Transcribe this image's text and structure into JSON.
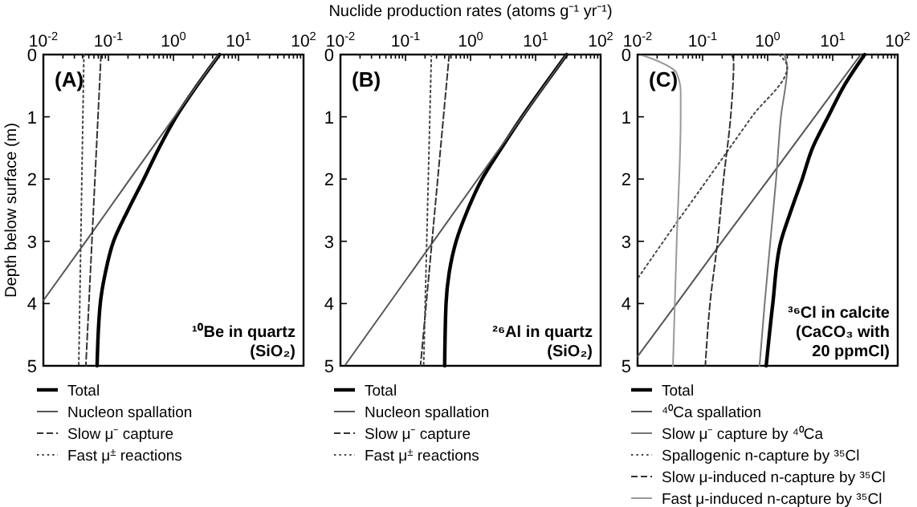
{
  "chart_data": [
    {
      "type": "line",
      "xlim": [
        0.01,
        100
      ],
      "ylim": [
        5,
        0
      ],
      "log": "x",
      "ylabel": "Depth below surface (m)",
      "legend": "bottom",
      "xticks": [
        {
          "value": 0.01,
          "label": "10$^{-2}$"
        },
        {
          "value": 0.1,
          "label": "10$^{-1}$"
        },
        {
          "value": 1,
          "label": "10$^{0}$"
        },
        {
          "value": 10,
          "label": "10$^{1}$"
        },
        {
          "value": 100,
          "label": "10$^{2}$"
        },
        {
          "value": 0.02,
          "label": null
        },
        {
          "value": 0.03,
          "label": null
        },
        {
          "value": 0.04,
          "label": null
        },
        {
          "value": 0.05,
          "label": null
        },
        {
          "value": 0.06,
          "label": null
        },
        {
          "value": 0.07,
          "label": null
        },
        {
          "value": 0.08,
          "label": null
        },
        {
          "value": 0.09,
          "label": null
        },
        {
          "value": 0.2,
          "label": null
        },
        {
          "value": 0.3,
          "label": null
        },
        {
          "value": 0.4,
          "label": null
        },
        {
          "value": 0.5,
          "label": null
        },
        {
          "value": 0.6,
          "label": null
        },
        {
          "value": 0.7,
          "label": null
        },
        {
          "value": 0.8,
          "label": null
        },
        {
          "value": 0.9,
          "label": null
        },
        {
          "value": 2,
          "label": null
        },
        {
          "value": 3,
          "label": null
        },
        {
          "value": 4,
          "label": null
        },
        {
          "value": 5,
          "label": null
        },
        {
          "value": 6,
          "label": null
        },
        {
          "value": 7,
          "label": null
        },
        {
          "value": 8,
          "label": null
        },
        {
          "value": 9,
          "label": null
        },
        {
          "value": 20,
          "label": null
        },
        {
          "value": 30,
          "label": null
        },
        {
          "value": 40,
          "label": null
        },
        {
          "value": 50,
          "label": null
        },
        {
          "value": 60,
          "label": null
        },
        {
          "value": 70,
          "label": null
        },
        {
          "value": 80,
          "label": null
        },
        {
          "value": 90,
          "label": null
        }
      ],
      "yticks": [
        0,
        1,
        2,
        3,
        4,
        5
      ],
      "annotations": [
        "(A)",
        "¹⁰Be in quartz\n(SiO₂)"
      ],
      "series": [
        {
          "name": "Total",
          "color": "#000000",
          "line_style": "solid",
          "x": [
            5.1,
            2.3,
            1.1,
            0.6,
            0.35,
            0.2,
            0.12,
            0.09,
            0.075,
            0.067
          ],
          "values": [
            0,
            0.5,
            1,
            1.5,
            2,
            2.5,
            3,
            3.5,
            4,
            5
          ]
        },
        {
          "name": "Nucleon spallation",
          "color": "#555555",
          "line_style": "solid",
          "x": [
            5,
            1.04,
            0.215,
            0.045,
            0.01
          ],
          "values": [
            0,
            1,
            2,
            3,
            3.95
          ]
        },
        {
          "name": "Slow μ⁻ capture",
          "color": "#333333",
          "line_style": "dashed",
          "x": [
            0.077,
            0.045
          ],
          "values": [
            0,
            5
          ]
        },
        {
          "name": "Fast μ$^{±}$ reactions",
          "color": "#444444",
          "line_style": "dotted",
          "x": [
            0.042,
            0.035
          ],
          "values": [
            0,
            5
          ]
        }
      ]
    },
    {
      "type": "line",
      "xlim": [
        0.01,
        100
      ],
      "ylim": [
        5,
        0
      ],
      "log": "x",
      "xlabel": "Nuclide production rates (atoms g⁻¹ yr⁻¹)",
      "legend": "bottom",
      "xticks": [
        {
          "value": 0.01,
          "label": "10$^{-2}$"
        },
        {
          "value": 0.1,
          "label": "10$^{-1}$"
        },
        {
          "value": 1,
          "label": "10$^{0}$"
        },
        {
          "value": 10,
          "label": "10$^{1}$"
        },
        {
          "value": 100,
          "label": "10$^{2}$"
        },
        {
          "value": 0.02,
          "label": null
        },
        {
          "value": 0.03,
          "label": null
        },
        {
          "value": 0.04,
          "label": null
        },
        {
          "value": 0.05,
          "label": null
        },
        {
          "value": 0.06,
          "label": null
        },
        {
          "value": 0.07,
          "label": null
        },
        {
          "value": 0.08,
          "label": null
        },
        {
          "value": 0.09,
          "label": null
        },
        {
          "value": 0.2,
          "label": null
        },
        {
          "value": 0.3,
          "label": null
        },
        {
          "value": 0.4,
          "label": null
        },
        {
          "value": 0.5,
          "label": null
        },
        {
          "value": 0.6,
          "label": null
        },
        {
          "value": 0.7,
          "label": null
        },
        {
          "value": 0.8,
          "label": null
        },
        {
          "value": 0.9,
          "label": null
        },
        {
          "value": 2,
          "label": null
        },
        {
          "value": 3,
          "label": null
        },
        {
          "value": 4,
          "label": null
        },
        {
          "value": 5,
          "label": null
        },
        {
          "value": 6,
          "label": null
        },
        {
          "value": 7,
          "label": null
        },
        {
          "value": 8,
          "label": null
        },
        {
          "value": 9,
          "label": null
        },
        {
          "value": 20,
          "label": null
        },
        {
          "value": 30,
          "label": null
        },
        {
          "value": 40,
          "label": null
        },
        {
          "value": 50,
          "label": null
        },
        {
          "value": 60,
          "label": null
        },
        {
          "value": 70,
          "label": null
        },
        {
          "value": 80,
          "label": null
        },
        {
          "value": 90,
          "label": null
        }
      ],
      "yticks": [
        0,
        1,
        2,
        3,
        4,
        5
      ],
      "annotations": [
        "(B)",
        "²⁶Al in quartz\n(SiO₂)"
      ],
      "series": [
        {
          "name": "Total",
          "color": "#000000",
          "line_style": "solid",
          "x": [
            30,
            13.5,
            6.2,
            3,
            1.5,
            0.9,
            0.6,
            0.47,
            0.42,
            0.4
          ],
          "values": [
            0,
            0.5,
            1,
            1.5,
            2,
            2.5,
            3,
            3.5,
            4,
            5
          ]
        },
        {
          "name": "Nucleon spallation",
          "color": "#555555",
          "line_style": "solid",
          "x": [
            30,
            0.0116
          ],
          "values": [
            0,
            5
          ]
        },
        {
          "name": "Slow μ⁻ capture",
          "color": "#333333",
          "line_style": "dashed",
          "x": [
            0.47,
            0.17
          ],
          "values": [
            0,
            5
          ]
        },
        {
          "name": "Fast μ$^{±}$ reactions",
          "color": "#444444",
          "line_style": "dotted",
          "x": [
            0.25,
            0.19
          ],
          "values": [
            0,
            5
          ]
        }
      ]
    },
    {
      "type": "line",
      "xlim": [
        0.01,
        100
      ],
      "ylim": [
        5,
        0
      ],
      "log": "x",
      "legend": "bottom",
      "xticks": [
        {
          "value": 0.01,
          "label": "10$^{-2}$"
        },
        {
          "value": 0.1,
          "label": "10$^{-1}$"
        },
        {
          "value": 1,
          "label": "10$^{0}$"
        },
        {
          "value": 10,
          "label": "10$^{1}$"
        },
        {
          "value": 100,
          "label": "10$^{2}$"
        },
        {
          "value": 0.02,
          "label": null
        },
        {
          "value": 0.03,
          "label": null
        },
        {
          "value": 0.04,
          "label": null
        },
        {
          "value": 0.05,
          "label": null
        },
        {
          "value": 0.06,
          "label": null
        },
        {
          "value": 0.07,
          "label": null
        },
        {
          "value": 0.08,
          "label": null
        },
        {
          "value": 0.09,
          "label": null
        },
        {
          "value": 0.2,
          "label": null
        },
        {
          "value": 0.3,
          "label": null
        },
        {
          "value": 0.4,
          "label": null
        },
        {
          "value": 0.5,
          "label": null
        },
        {
          "value": 0.6,
          "label": null
        },
        {
          "value": 0.7,
          "label": null
        },
        {
          "value": 0.8,
          "label": null
        },
        {
          "value": 0.9,
          "label": null
        },
        {
          "value": 2,
          "label": null
        },
        {
          "value": 3,
          "label": null
        },
        {
          "value": 4,
          "label": null
        },
        {
          "value": 5,
          "label": null
        },
        {
          "value": 6,
          "label": null
        },
        {
          "value": 7,
          "label": null
        },
        {
          "value": 8,
          "label": null
        },
        {
          "value": 9,
          "label": null
        },
        {
          "value": 20,
          "label": null
        },
        {
          "value": 30,
          "label": null
        },
        {
          "value": 40,
          "label": null
        },
        {
          "value": 50,
          "label": null
        },
        {
          "value": 60,
          "label": null
        },
        {
          "value": 70,
          "label": null
        },
        {
          "value": 80,
          "label": null
        },
        {
          "value": 90,
          "label": null
        }
      ],
      "yticks": [
        0,
        1,
        2,
        3,
        4,
        5
      ],
      "annotations": [
        "(C)",
        "³⁶Cl in calcite\n(CaCO₃ with\n20 ppmCl)"
      ],
      "series": [
        {
          "name": "Total",
          "color": "#000000",
          "line_style": "solid",
          "x": [
            31,
            15,
            8.5,
            4.9,
            3.4,
            2.3,
            1.6,
            1.2,
            0.95
          ],
          "values": [
            0,
            0.5,
            1,
            1.5,
            2,
            2.5,
            3,
            4,
            5
          ]
        },
        {
          "name": "⁴⁰Ca spallation",
          "color": "#555555",
          "line_style": "solid",
          "x": [
            27,
            5.3,
            1.04,
            0.2,
            0.04,
            0.01
          ],
          "values": [
            0,
            1,
            2,
            3,
            4,
            4.85
          ]
        },
        {
          "name": "Slow μ⁻ capture by ⁴⁰Ca",
          "color": "#777777",
          "line_style": "solid",
          "x": [
            1.8,
            2,
            1.6,
            1.35,
            1.1,
            0.9,
            0.75
          ],
          "values": [
            0,
            0.2,
            1,
            2,
            3,
            4,
            5
          ]
        },
        {
          "name": "Spallogenic n-capture by ³⁵Cl",
          "color": "#444444",
          "line_style": "dotted",
          "x": [
            1.5,
            2,
            0.57,
            0.12,
            0.025,
            0.01
          ],
          "values": [
            0,
            0.2,
            1,
            2,
            3,
            3.6
          ]
        },
        {
          "name": "Slow μ-induced n-capture by ³⁵Cl",
          "color": "#333333",
          "line_style": "dashed",
          "x": [
            0.28,
            0.3,
            0.27,
            0.21,
            0.17,
            0.13,
            0.11
          ],
          "values": [
            0,
            0.1,
            1,
            2,
            3,
            4,
            5
          ]
        },
        {
          "name": "Fast μ-induced n-capture by ³⁵Cl",
          "color": "#999999",
          "line_style": "solid",
          "x": [
            0.011,
            0.02,
            0.04,
            0.046,
            0.046,
            0.04,
            0.035
          ],
          "values": [
            0,
            0.1,
            0.3,
            0.6,
            1,
            3,
            5
          ]
        }
      ]
    }
  ]
}
